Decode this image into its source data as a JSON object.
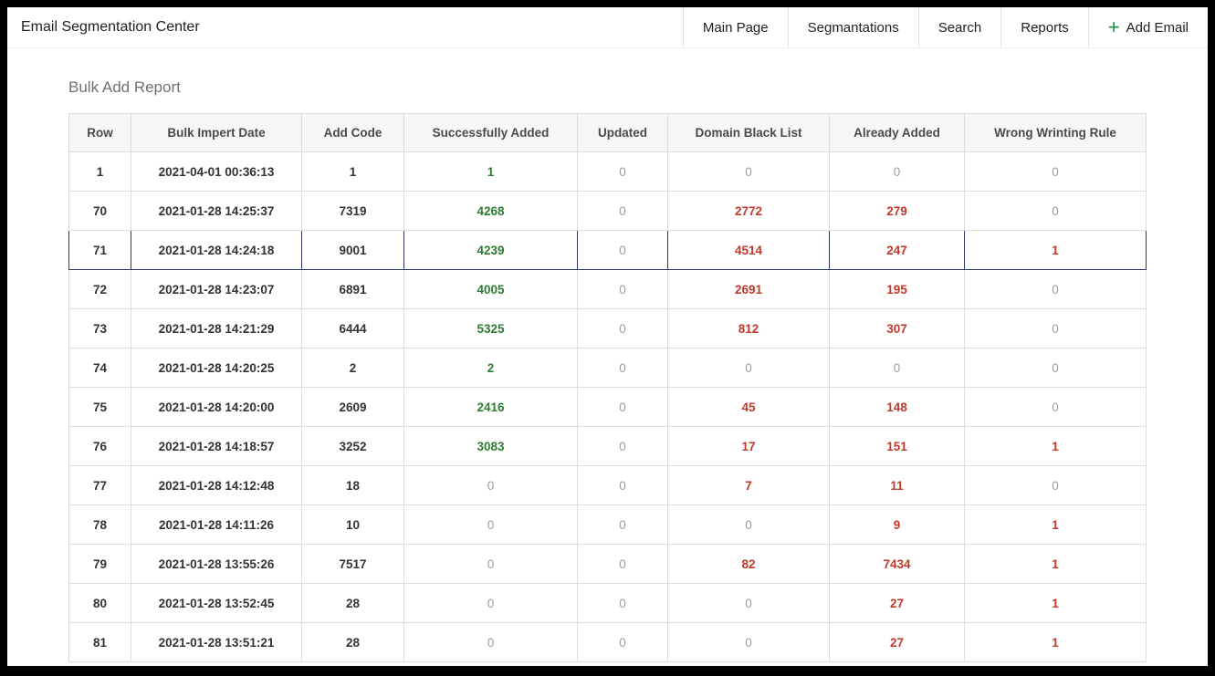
{
  "header": {
    "title": "Email Segmentation Center",
    "nav": [
      {
        "label": "Main Page"
      },
      {
        "label": "Segmantations"
      },
      {
        "label": "Search"
      },
      {
        "label": "Reports"
      }
    ],
    "add_email": {
      "plus": "+",
      "label": "Add Email"
    }
  },
  "page": {
    "section_title": "Bulk Add Report"
  },
  "table": {
    "columns": [
      {
        "key": "row",
        "label": "Row"
      },
      {
        "key": "date",
        "label": "Bulk Impert Date"
      },
      {
        "key": "add_code",
        "label": "Add Code"
      },
      {
        "key": "success",
        "label": "Successfully Added"
      },
      {
        "key": "updated",
        "label": "Updated"
      },
      {
        "key": "blacklist",
        "label": "Domain Black List"
      },
      {
        "key": "already",
        "label": "Already Added"
      },
      {
        "key": "wrong",
        "label": "Wrong Wrinting Rule"
      }
    ],
    "rows": [
      {
        "row": "1",
        "date": "2021-04-01 00:36:13",
        "add_code": "1",
        "success": "1",
        "updated": "0",
        "blacklist": "0",
        "already": "0",
        "wrong": "0",
        "highlight": false
      },
      {
        "row": "70",
        "date": "2021-01-28 14:25:37",
        "add_code": "7319",
        "success": "4268",
        "updated": "0",
        "blacklist": "2772",
        "already": "279",
        "wrong": "0",
        "highlight": false
      },
      {
        "row": "71",
        "date": "2021-01-28 14:24:18",
        "add_code": "9001",
        "success": "4239",
        "updated": "0",
        "blacklist": "4514",
        "already": "247",
        "wrong": "1",
        "highlight": true
      },
      {
        "row": "72",
        "date": "2021-01-28 14:23:07",
        "add_code": "6891",
        "success": "4005",
        "updated": "0",
        "blacklist": "2691",
        "already": "195",
        "wrong": "0",
        "highlight": false
      },
      {
        "row": "73",
        "date": "2021-01-28 14:21:29",
        "add_code": "6444",
        "success": "5325",
        "updated": "0",
        "blacklist": "812",
        "already": "307",
        "wrong": "0",
        "highlight": false
      },
      {
        "row": "74",
        "date": "2021-01-28 14:20:25",
        "add_code": "2",
        "success": "2",
        "updated": "0",
        "blacklist": "0",
        "already": "0",
        "wrong": "0",
        "highlight": false
      },
      {
        "row": "75",
        "date": "2021-01-28 14:20:00",
        "add_code": "2609",
        "success": "2416",
        "updated": "0",
        "blacklist": "45",
        "already": "148",
        "wrong": "0",
        "highlight": false
      },
      {
        "row": "76",
        "date": "2021-01-28 14:18:57",
        "add_code": "3252",
        "success": "3083",
        "updated": "0",
        "blacklist": "17",
        "already": "151",
        "wrong": "1",
        "highlight": false
      },
      {
        "row": "77",
        "date": "2021-01-28 14:12:48",
        "add_code": "18",
        "success": "0",
        "updated": "0",
        "blacklist": "7",
        "already": "11",
        "wrong": "0",
        "highlight": false
      },
      {
        "row": "78",
        "date": "2021-01-28 14:11:26",
        "add_code": "10",
        "success": "0",
        "updated": "0",
        "blacklist": "0",
        "already": "9",
        "wrong": "1",
        "highlight": false
      },
      {
        "row": "79",
        "date": "2021-01-28 13:55:26",
        "add_code": "7517",
        "success": "0",
        "updated": "0",
        "blacklist": "82",
        "already": "7434",
        "wrong": "1",
        "highlight": false
      },
      {
        "row": "80",
        "date": "2021-01-28 13:52:45",
        "add_code": "28",
        "success": "0",
        "updated": "0",
        "blacklist": "0",
        "already": "27",
        "wrong": "1",
        "highlight": false
      },
      {
        "row": "81",
        "date": "2021-01-28 13:51:21",
        "add_code": "28",
        "success": "0",
        "updated": "0",
        "blacklist": "0",
        "already": "27",
        "wrong": "1",
        "highlight": false
      }
    ]
  },
  "colors": {
    "green": "#2e7d32",
    "red": "#c0392b",
    "muted": "#9c9c9c",
    "add_email_green": "#18923f",
    "highlight_bg": "#edf4fb",
    "highlight_border": "#2e3b67"
  }
}
